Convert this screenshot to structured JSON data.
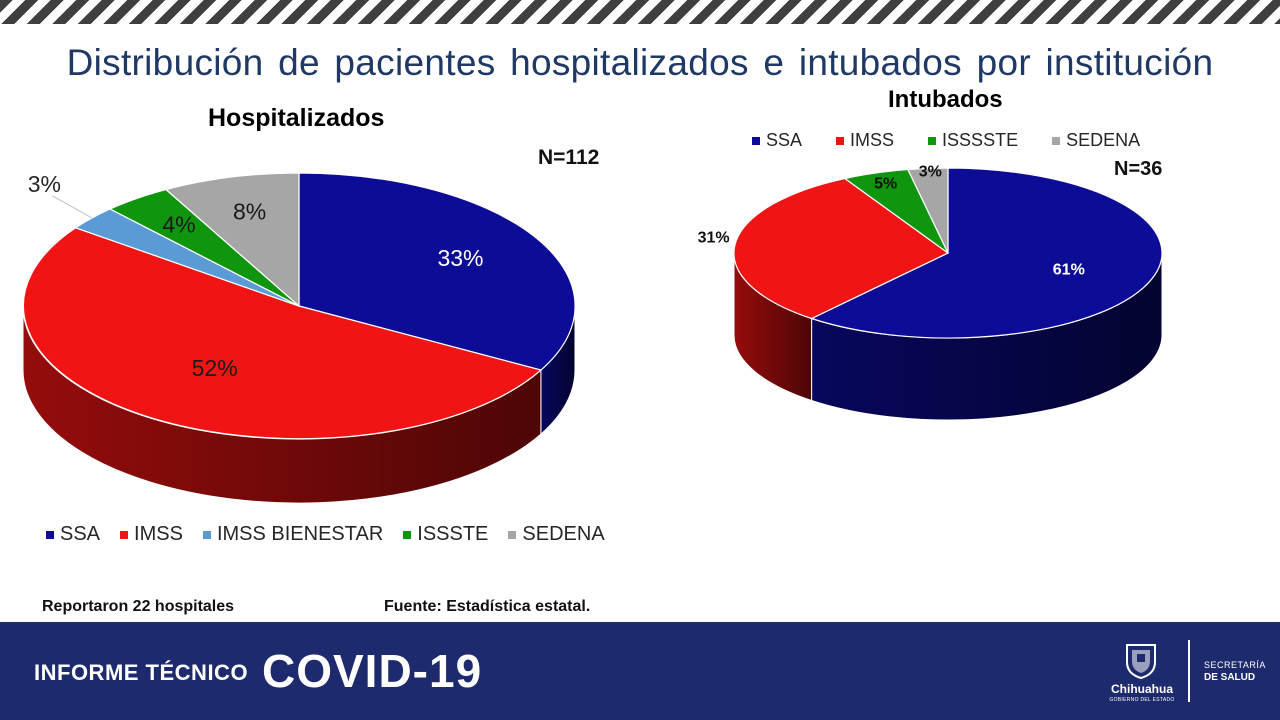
{
  "title": "Distribución de pacientes hospitalizados e intubados por institución",
  "chart_data": [
    {
      "type": "pie",
      "title": "Hospitalizados",
      "note": "N=112",
      "categories": [
        "SSA",
        "IMSS",
        "IMSS BIENESTAR",
        "ISSSTE",
        "SEDENA"
      ],
      "values": [
        33,
        52,
        3,
        4,
        8
      ],
      "labels": [
        "33%",
        "52%",
        "3%",
        "4%",
        "8%"
      ],
      "colors": [
        "#0c0c96",
        "#f01414",
        "#5b9bd5",
        "#10960e",
        "#a6a6a6"
      ],
      "style": "3d",
      "legend_position": "bottom"
    },
    {
      "type": "pie",
      "title": "Intubados",
      "note": "N=36",
      "categories": [
        "SSA",
        "IMSS",
        "ISSSTE",
        "SEDENA"
      ],
      "legend_labels": [
        "SSA",
        "IMSS",
        "ISSSSTE",
        "SEDENA"
      ],
      "values": [
        61,
        31,
        5,
        3
      ],
      "labels": [
        "61%",
        "31%",
        "5%",
        "3%"
      ],
      "colors": [
        "#0c0c96",
        "#f01414",
        "#10960e",
        "#a6a6a6"
      ],
      "style": "3d",
      "legend_position": "top"
    }
  ],
  "footer": {
    "note_left": "Reportaron 22 hospitales",
    "note_right": "Fuente: Estadística estatal.",
    "banner_label": "INFORME TÉCNICO",
    "banner_main": "COVID-19",
    "logo_city": "Chihuahua",
    "logo_sub": "GOBIERNO DEL ESTADO",
    "secretaria_line1": "SECRETARÍA",
    "secretaria_line2": "DE SALUD"
  }
}
